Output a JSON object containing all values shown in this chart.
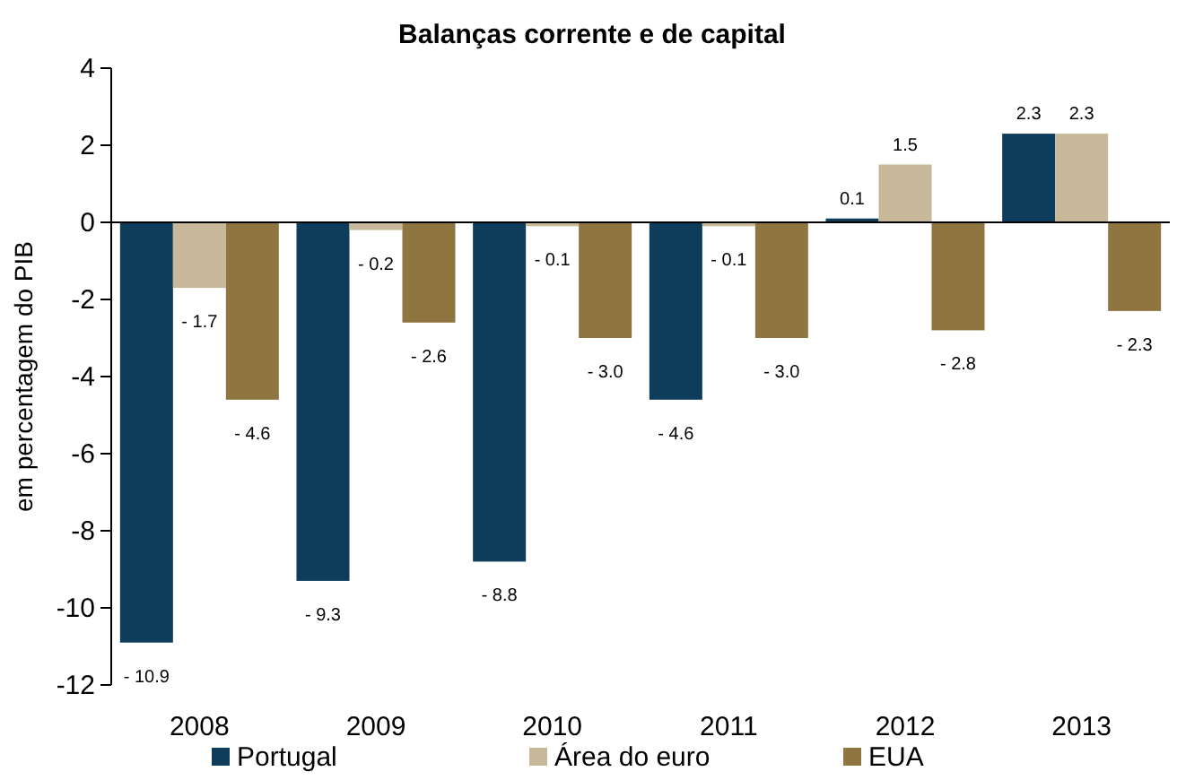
{
  "chart_data": {
    "type": "bar",
    "title": "Balanças corrente e de capital",
    "ylabel": "em percentagem do PIB",
    "categories": [
      "2008",
      "2009",
      "2010",
      "2011",
      "2012",
      "2013"
    ],
    "series": [
      {
        "name": "Portugal",
        "color": "#0e3d5c",
        "values": [
          -10.9,
          -9.3,
          -8.8,
          -4.6,
          0.1,
          2.3
        ],
        "value_labels": [
          "- 10.9",
          "- 9.3",
          "- 8.8",
          "- 4.6",
          "0.1",
          "2.3"
        ]
      },
      {
        "name": "Área do euro",
        "color": "#c8b89a",
        "values": [
          -1.7,
          -0.2,
          -0.1,
          -0.1,
          1.5,
          2.3
        ],
        "value_labels": [
          "- 1.7",
          "- 0.2",
          "- 0.1",
          "- 0.1",
          "1.5",
          "2.3"
        ]
      },
      {
        "name": "EUA",
        "color": "#8f7540",
        "values": [
          -4.6,
          -2.6,
          -3.0,
          -3.0,
          -2.8,
          -2.3
        ],
        "value_labels": [
          "- 4.6",
          "- 2.6",
          "- 3.0",
          "- 3.0",
          "- 2.8",
          "- 2.3"
        ]
      }
    ],
    "ylim": [
      -12,
      4
    ],
    "yticks": [
      -12,
      -10,
      -8,
      -6,
      -4,
      -2,
      0,
      2,
      4
    ],
    "legend": "bottom"
  }
}
